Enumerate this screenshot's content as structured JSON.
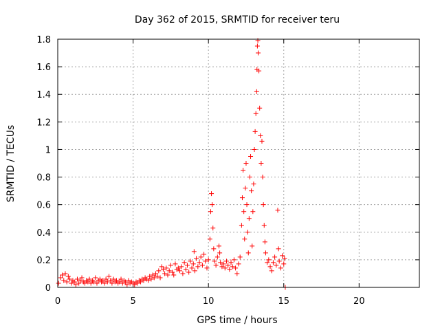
{
  "chart_data": {
    "type": "scatter",
    "title": "Day 362 of 2015, SRMTID for receiver teru",
    "xlabel": "GPS time / hours",
    "ylabel": "SRMTID / TECUs",
    "xlim": [
      0,
      24
    ],
    "ylim": [
      0,
      1.8
    ],
    "xticks": [
      0,
      5,
      10,
      15,
      20
    ],
    "yticks": [
      0,
      0.2,
      0.4,
      0.6,
      0.8,
      1,
      1.2,
      1.4,
      1.6,
      1.8
    ],
    "ytick_labels": [
      "0",
      "0.2",
      "0.4",
      "0.6",
      "0.8",
      "1",
      "1.2",
      "1.4",
      "1.6",
      "1.8"
    ],
    "grid": true,
    "marker": "+",
    "color": "#ff0000",
    "series": [
      {
        "name": "SRMTID",
        "points": [
          [
            0.05,
            0.03
          ],
          [
            0.2,
            0.07
          ],
          [
            0.3,
            0.09
          ],
          [
            0.4,
            0.05
          ],
          [
            0.5,
            0.1
          ],
          [
            0.6,
            0.04
          ],
          [
            0.7,
            0.08
          ],
          [
            0.8,
            0.06
          ],
          [
            0.9,
            0.03
          ],
          [
            1.0,
            0.05
          ],
          [
            1.1,
            0.04
          ],
          [
            1.2,
            0.02
          ],
          [
            1.3,
            0.06
          ],
          [
            1.4,
            0.03
          ],
          [
            1.5,
            0.05
          ],
          [
            1.6,
            0.07
          ],
          [
            1.7,
            0.04
          ],
          [
            1.8,
            0.03
          ],
          [
            1.9,
            0.05
          ],
          [
            2.0,
            0.04
          ],
          [
            2.1,
            0.06
          ],
          [
            2.2,
            0.03
          ],
          [
            2.3,
            0.05
          ],
          [
            2.4,
            0.04
          ],
          [
            2.5,
            0.07
          ],
          [
            2.6,
            0.03
          ],
          [
            2.7,
            0.05
          ],
          [
            2.8,
            0.06
          ],
          [
            2.9,
            0.04
          ],
          [
            3.0,
            0.05
          ],
          [
            3.1,
            0.03
          ],
          [
            3.2,
            0.06
          ],
          [
            3.3,
            0.04
          ],
          [
            3.4,
            0.08
          ],
          [
            3.5,
            0.05
          ],
          [
            3.6,
            0.03
          ],
          [
            3.7,
            0.06
          ],
          [
            3.8,
            0.04
          ],
          [
            3.9,
            0.05
          ],
          [
            4.0,
            0.03
          ],
          [
            4.1,
            0.04
          ],
          [
            4.2,
            0.06
          ],
          [
            4.3,
            0.03
          ],
          [
            4.4,
            0.05
          ],
          [
            4.5,
            0.04
          ],
          [
            4.6,
            0.02
          ],
          [
            4.7,
            0.05
          ],
          [
            4.8,
            0.03
          ],
          [
            4.9,
            0.04
          ],
          [
            5.0,
            0.03
          ],
          [
            5.1,
            0.02
          ],
          [
            5.2,
            0.04
          ],
          [
            5.3,
            0.03
          ],
          [
            5.4,
            0.05
          ],
          [
            5.5,
            0.04
          ],
          [
            5.6,
            0.06
          ],
          [
            5.7,
            0.05
          ],
          [
            5.8,
            0.07
          ],
          [
            5.9,
            0.06
          ],
          [
            6.0,
            0.05
          ],
          [
            6.1,
            0.08
          ],
          [
            6.2,
            0.06
          ],
          [
            6.3,
            0.09
          ],
          [
            6.4,
            0.07
          ],
          [
            6.5,
            0.1
          ],
          [
            6.6,
            0.08
          ],
          [
            6.7,
            0.12
          ],
          [
            6.8,
            0.07
          ],
          [
            6.9,
            0.15
          ],
          [
            7.0,
            0.13
          ],
          [
            7.1,
            0.1
          ],
          [
            7.2,
            0.14
          ],
          [
            7.3,
            0.09
          ],
          [
            7.4,
            0.12
          ],
          [
            7.5,
            0.16
          ],
          [
            7.6,
            0.11
          ],
          [
            7.7,
            0.09
          ],
          [
            7.8,
            0.17
          ],
          [
            7.9,
            0.13
          ],
          [
            8.0,
            0.14
          ],
          [
            8.1,
            0.12
          ],
          [
            8.2,
            0.15
          ],
          [
            8.3,
            0.1
          ],
          [
            8.4,
            0.18
          ],
          [
            8.5,
            0.13
          ],
          [
            8.6,
            0.16
          ],
          [
            8.7,
            0.11
          ],
          [
            8.8,
            0.19
          ],
          [
            8.9,
            0.14
          ],
          [
            9.0,
            0.17
          ],
          [
            9.05,
            0.26
          ],
          [
            9.1,
            0.12
          ],
          [
            9.2,
            0.21
          ],
          [
            9.3,
            0.15
          ],
          [
            9.4,
            0.18
          ],
          [
            9.5,
            0.22
          ],
          [
            9.6,
            0.16
          ],
          [
            9.7,
            0.24
          ],
          [
            9.8,
            0.19
          ],
          [
            9.9,
            0.14
          ],
          [
            10.0,
            0.2
          ],
          [
            10.1,
            0.35
          ],
          [
            10.15,
            0.55
          ],
          [
            10.2,
            0.68
          ],
          [
            10.25,
            0.6
          ],
          [
            10.3,
            0.43
          ],
          [
            10.35,
            0.28
          ],
          [
            10.4,
            0.19
          ],
          [
            10.5,
            0.16
          ],
          [
            10.6,
            0.22
          ],
          [
            10.7,
            0.3
          ],
          [
            10.75,
            0.25
          ],
          [
            10.8,
            0.18
          ],
          [
            10.9,
            0.15
          ],
          [
            11.0,
            0.17
          ],
          [
            11.1,
            0.14
          ],
          [
            11.2,
            0.19
          ],
          [
            11.3,
            0.16
          ],
          [
            11.4,
            0.13
          ],
          [
            11.5,
            0.18
          ],
          [
            11.6,
            0.15
          ],
          [
            11.7,
            0.2
          ],
          [
            11.8,
            0.14
          ],
          [
            11.9,
            0.1
          ],
          [
            12.0,
            0.17
          ],
          [
            12.1,
            0.22
          ],
          [
            12.2,
            0.45
          ],
          [
            12.25,
            0.65
          ],
          [
            12.3,
            0.85
          ],
          [
            12.35,
            0.55
          ],
          [
            12.4,
            0.35
          ],
          [
            12.45,
            0.72
          ],
          [
            12.5,
            0.9
          ],
          [
            12.55,
            0.6
          ],
          [
            12.6,
            0.4
          ],
          [
            12.65,
            0.25
          ],
          [
            12.7,
            0.5
          ],
          [
            12.75,
            0.8
          ],
          [
            12.8,
            0.95
          ],
          [
            12.85,
            0.7
          ],
          [
            12.9,
            0.3
          ],
          [
            12.95,
            0.55
          ],
          [
            13.0,
            0.75
          ],
          [
            13.05,
            1.0
          ],
          [
            13.1,
            1.13
          ],
          [
            13.15,
            1.26
          ],
          [
            13.2,
            1.42
          ],
          [
            13.22,
            1.58
          ],
          [
            13.25,
            1.75
          ],
          [
            13.28,
            1.79
          ],
          [
            13.3,
            1.7
          ],
          [
            13.35,
            1.57
          ],
          [
            13.4,
            1.3
          ],
          [
            13.45,
            1.1
          ],
          [
            13.5,
            0.9
          ],
          [
            13.55,
            1.06
          ],
          [
            13.6,
            0.8
          ],
          [
            13.65,
            0.6
          ],
          [
            13.7,
            0.45
          ],
          [
            13.75,
            0.33
          ],
          [
            13.8,
            0.25
          ],
          [
            13.9,
            0.18
          ],
          [
            14.0,
            0.2
          ],
          [
            14.1,
            0.15
          ],
          [
            14.2,
            0.12
          ],
          [
            14.3,
            0.18
          ],
          [
            14.4,
            0.22
          ],
          [
            14.5,
            0.16
          ],
          [
            14.6,
            0.56
          ],
          [
            14.65,
            0.28
          ],
          [
            14.7,
            0.19
          ],
          [
            14.8,
            0.14
          ],
          [
            14.9,
            0.23
          ],
          [
            15.0,
            0.17
          ],
          [
            15.05,
            0.21
          ],
          [
            15.1,
            0.0
          ]
        ]
      }
    ]
  }
}
